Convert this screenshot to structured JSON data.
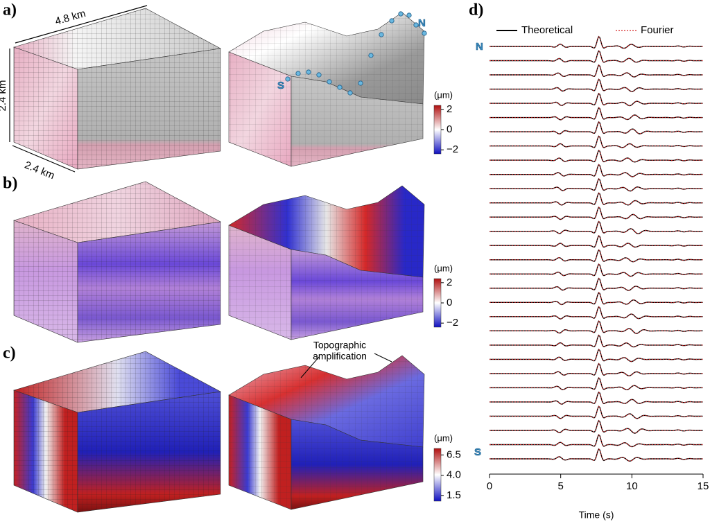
{
  "panels": [
    {
      "label": "a)",
      "dimensions": {
        "length": "4.8 km",
        "height": "2.4 km",
        "width": "2.4 km"
      },
      "profile_ends": {
        "south": "S",
        "north": "N"
      },
      "colorbar": {
        "unit": "(μm)",
        "clim": [
          -2.4,
          2.4
        ],
        "ticks": [
          2,
          0,
          {
            "value": -2,
            "label": "−2"
          }
        ]
      }
    },
    {
      "label": "b)",
      "colorbar": {
        "unit": "(μm)",
        "clim": [
          -2.4,
          2.4
        ],
        "ticks": [
          2,
          0,
          {
            "value": -2,
            "label": "−2"
          }
        ]
      }
    },
    {
      "label": "c)",
      "annotation": [
        "Topographic",
        "amplification"
      ],
      "colorbar": {
        "unit": "(μm)",
        "clim": [
          0.8,
          7.3
        ],
        "ticks": [
          6.5,
          {
            "value": 4,
            "label": "4.0"
          },
          1.5
        ]
      }
    }
  ],
  "waveforms": {
    "label": "d)",
    "xlim": [
      0,
      15
    ],
    "xticks": [
      0,
      5,
      10,
      15
    ],
    "xlabel": "Time (s)",
    "series": [
      {
        "name": "Theoretical",
        "color": "#000000"
      },
      {
        "name": "Fourier",
        "color": "#d42020"
      }
    ],
    "top_label": "N",
    "bottom_label": "S"
  }
}
